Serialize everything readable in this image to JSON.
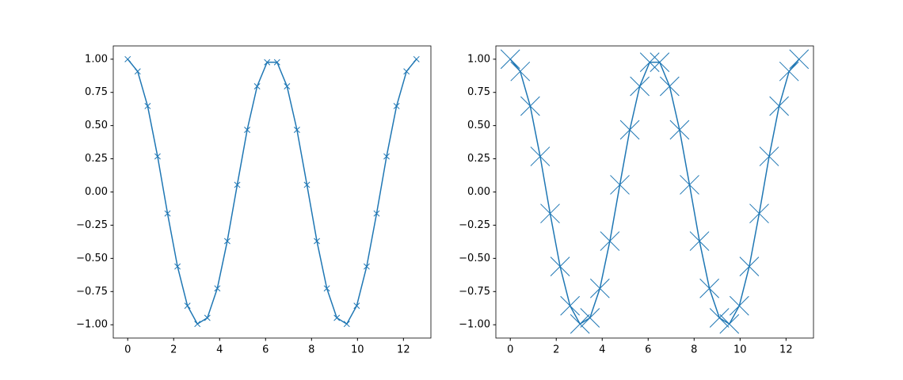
{
  "chart_data": [
    {
      "type": "line",
      "marker": "x",
      "marker_size": 6,
      "color": "#1f77b4",
      "x": [
        0,
        0.433,
        0.867,
        1.3,
        1.733,
        2.167,
        2.6,
        3.033,
        3.467,
        3.9,
        4.333,
        4.767,
        5.2,
        5.633,
        6.067,
        6.5,
        6.933,
        7.366,
        7.8,
        8.233,
        8.666,
        9.1,
        9.533,
        9.966,
        10.4,
        10.833,
        11.266,
        11.7,
        12.133,
        12.566
      ],
      "values": [
        1,
        0.908,
        0.647,
        0.268,
        -0.162,
        -0.561,
        -0.857,
        -0.994,
        -0.948,
        -0.726,
        -0.37,
        0.054,
        0.468,
        0.796,
        0.977,
        0.977,
        0.796,
        0.468,
        0.054,
        -0.37,
        -0.726,
        -0.948,
        -0.994,
        -0.857,
        -0.561,
        -0.162,
        0.268,
        0.647,
        0.908,
        1
      ],
      "xlim": [
        -0.628,
        13.195
      ],
      "ylim": [
        -1.1,
        1.1
      ],
      "xticks": [
        0,
        2,
        4,
        6,
        8,
        10,
        12
      ],
      "yticks": [
        {
          "value": -1,
          "label": "−1.00"
        },
        {
          "value": -0.75,
          "label": "−0.75"
        },
        {
          "value": -0.5,
          "label": "−0.50"
        },
        {
          "value": -0.25,
          "label": "−0.25"
        },
        {
          "value": 0,
          "label": "0.00"
        },
        {
          "value": 0.25,
          "label": "0.25"
        },
        {
          "value": 0.5,
          "label": "0.50"
        },
        {
          "value": 0.75,
          "label": "0.75"
        },
        {
          "value": 1,
          "label": "1.00"
        }
      ]
    },
    {
      "type": "line",
      "marker": "x",
      "marker_size": 20,
      "color": "#1f77b4",
      "x": [
        0,
        0.433,
        0.867,
        1.3,
        1.733,
        2.167,
        2.6,
        3.033,
        3.467,
        3.9,
        4.333,
        4.767,
        5.2,
        5.633,
        6.067,
        6.5,
        6.933,
        7.366,
        7.8,
        8.233,
        8.666,
        9.1,
        9.533,
        9.966,
        10.4,
        10.833,
        11.266,
        11.7,
        12.133,
        12.566
      ],
      "values": [
        1,
        0.908,
        0.647,
        0.268,
        -0.162,
        -0.561,
        -0.857,
        -0.994,
        -0.948,
        -0.726,
        -0.37,
        0.054,
        0.468,
        0.796,
        0.977,
        0.977,
        0.796,
        0.468,
        0.054,
        -0.37,
        -0.726,
        -0.948,
        -0.994,
        -0.857,
        -0.561,
        -0.162,
        0.268,
        0.647,
        0.908,
        1
      ],
      "xlim": [
        -0.628,
        13.195
      ],
      "ylim": [
        -1.1,
        1.1
      ],
      "xticks": [
        0,
        2,
        4,
        6,
        8,
        10,
        12
      ],
      "yticks": [
        {
          "value": -1,
          "label": "−1.00"
        },
        {
          "value": -0.75,
          "label": "−0.75"
        },
        {
          "value": -0.5,
          "label": "−0.50"
        },
        {
          "value": -0.25,
          "label": "−0.25"
        },
        {
          "value": 0,
          "label": "0.00"
        },
        {
          "value": 0.25,
          "label": "0.25"
        },
        {
          "value": 0.5,
          "label": "0.50"
        },
        {
          "value": 0.75,
          "label": "0.75"
        },
        {
          "value": 1,
          "label": "1.00"
        }
      ]
    }
  ]
}
